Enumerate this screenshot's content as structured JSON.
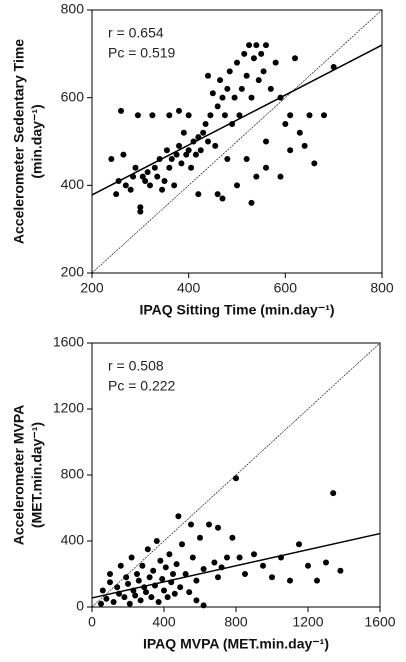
{
  "chart_data": [
    {
      "type": "scatter",
      "annotations": [
        "r = 0.654",
        "Pc = 0.519"
      ],
      "xlabel": "IPAQ Sitting Time (min.day⁻¹)",
      "ylabel": [
        "Accelerometer  Sedentary Time",
        "(min.day⁻¹)"
      ],
      "xlim": [
        200,
        800
      ],
      "xticks": [
        200,
        400,
        600,
        800
      ],
      "ylim": [
        200,
        800
      ],
      "yticks": [
        200,
        400,
        600,
        800
      ],
      "color": "#000000",
      "x": [
        240,
        250,
        255,
        260,
        265,
        270,
        280,
        285,
        290,
        295,
        300,
        300,
        305,
        310,
        315,
        320,
        325,
        330,
        335,
        340,
        345,
        350,
        355,
        360,
        360,
        365,
        370,
        375,
        380,
        385,
        390,
        395,
        400,
        400,
        405,
        410,
        415,
        420,
        420,
        425,
        430,
        435,
        440,
        440,
        445,
        450,
        455,
        460,
        460,
        465,
        470,
        475,
        480,
        485,
        490,
        495,
        500,
        505,
        510,
        515,
        520,
        525,
        530,
        535,
        540,
        545,
        550,
        555,
        560,
        560,
        570,
        580,
        590,
        600,
        610,
        620,
        630,
        640,
        650,
        660,
        680,
        700,
        500,
        520,
        540,
        470,
        380,
        590,
        610,
        530,
        480,
        560
      ],
      "values": [
        460,
        380,
        410,
        570,
        470,
        400,
        390,
        420,
        440,
        560,
        350,
        340,
        420,
        410,
        430,
        400,
        560,
        440,
        420,
        460,
        390,
        410,
        480,
        440,
        560,
        460,
        400,
        470,
        490,
        450,
        520,
        470,
        560,
        480,
        440,
        500,
        470,
        510,
        380,
        480,
        520,
        540,
        500,
        650,
        560,
        610,
        490,
        580,
        380,
        640,
        600,
        560,
        620,
        660,
        540,
        600,
        680,
        560,
        620,
        700,
        650,
        720,
        600,
        690,
        720,
        640,
        700,
        660,
        720,
        440,
        620,
        680,
        600,
        540,
        480,
        690,
        520,
        490,
        560,
        450,
        560,
        670,
        400,
        460,
        420,
        370,
        570,
        420,
        560,
        360,
        460,
        500
      ],
      "fit_line": {
        "x": [
          200,
          800
        ],
        "values": [
          378,
          720
        ]
      },
      "identity_line": {
        "x": [
          200,
          800
        ],
        "values": [
          200,
          800
        ]
      }
    },
    {
      "type": "scatter",
      "annotations": [
        "r = 0.508",
        "Pc = 0.222"
      ],
      "xlabel": "IPAQ MVPA (MET.min.day⁻¹)",
      "ylabel": [
        "Accelerometer  MVPA",
        "(MET.min.day⁻¹)"
      ],
      "xlim": [
        0,
        1600
      ],
      "xticks": [
        0,
        400,
        800,
        1200,
        1600
      ],
      "ylim": [
        0,
        1600
      ],
      "yticks": [
        0,
        400,
        800,
        1200,
        1600
      ],
      "color": "#000000",
      "x": [
        50,
        60,
        80,
        100,
        100,
        120,
        140,
        150,
        160,
        180,
        190,
        200,
        210,
        220,
        230,
        240,
        250,
        260,
        270,
        280,
        290,
        300,
        310,
        320,
        330,
        340,
        350,
        360,
        370,
        380,
        390,
        400,
        410,
        420,
        430,
        440,
        450,
        460,
        470,
        480,
        490,
        500,
        520,
        540,
        560,
        580,
        600,
        620,
        650,
        680,
        700,
        720,
        750,
        780,
        800,
        820,
        850,
        900,
        950,
        1000,
        1050,
        1100,
        1150,
        1200,
        1250,
        1300,
        1340,
        1380,
        580,
        620,
        700,
        550
      ],
      "values": [
        20,
        100,
        50,
        200,
        150,
        30,
        120,
        80,
        250,
        60,
        180,
        140,
        20,
        300,
        100,
        70,
        200,
        160,
        40,
        250,
        120,
        90,
        350,
        180,
        60,
        220,
        130,
        400,
        30,
        280,
        170,
        100,
        240,
        60,
        320,
        150,
        200,
        80,
        260,
        550,
        120,
        380,
        200,
        90,
        300,
        160,
        420,
        230,
        500,
        270,
        180,
        240,
        300,
        420,
        780,
        300,
        200,
        320,
        250,
        180,
        300,
        160,
        380,
        250,
        160,
        270,
        690,
        220,
        40,
        10,
        480,
        500
      ],
      "fit_line": {
        "x": [
          0,
          1600
        ],
        "values": [
          55,
          445
        ]
      },
      "identity_line": {
        "x": [
          0,
          1600
        ],
        "values": [
          0,
          1600
        ]
      }
    }
  ]
}
